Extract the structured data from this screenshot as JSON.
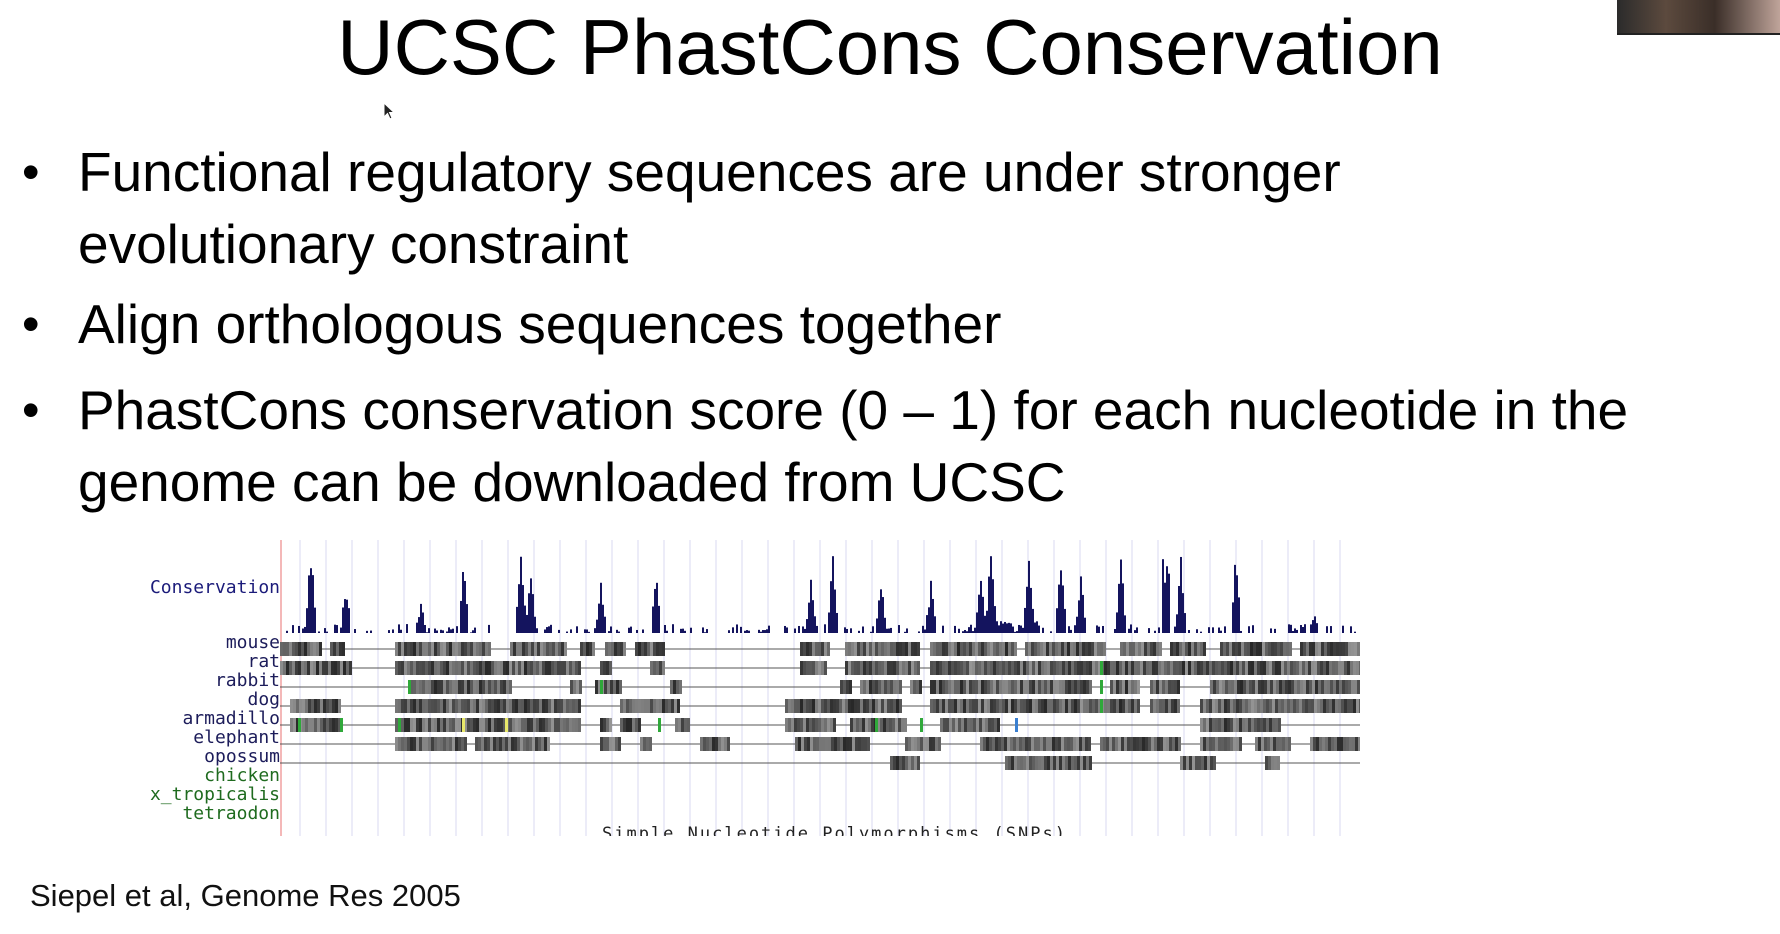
{
  "slide": {
    "title": "UCSC PhastCons Conservation",
    "bullets": [
      {
        "line1": "Functional regulatory sequences are under stronger",
        "line2": "evolutionary constraint"
      },
      {
        "line1": "Align orthologous sequences together",
        "line2": ""
      },
      {
        "line1": "PhastCons conservation score (0 – 1) for each nucleotide in the",
        "line2": "genome can be downloaded from UCSC"
      }
    ],
    "bullet_symbol": "•",
    "citation": "Siepel et al, Genome Res 2005"
  },
  "track_figure": {
    "conservation_label": "Conservation",
    "species": [
      "mouse",
      "rat",
      "rabbit",
      "dog",
      "armadillo",
      "elephant",
      "opossum",
      "chicken",
      "x_tropicalis",
      "tetraodon"
    ],
    "bottom_caption": "Simple Nucleotide Polymorphisms (SNPs)",
    "colors": {
      "conservation_bars": "#14145e",
      "alignment_block": "#3a3a3a",
      "alignment_line": "#555555",
      "grid_line": "#d8d8f0",
      "label_blue": "#1b1b7a",
      "label_green": "#1f6b1f",
      "highlight_green": "#2fa83a",
      "highlight_yellow": "#e8e86a",
      "highlight_blue": "#3a7fd0"
    }
  },
  "icons": {
    "cursor": "mouse-pointer-icon",
    "presenter": "presenter-video-icon"
  }
}
